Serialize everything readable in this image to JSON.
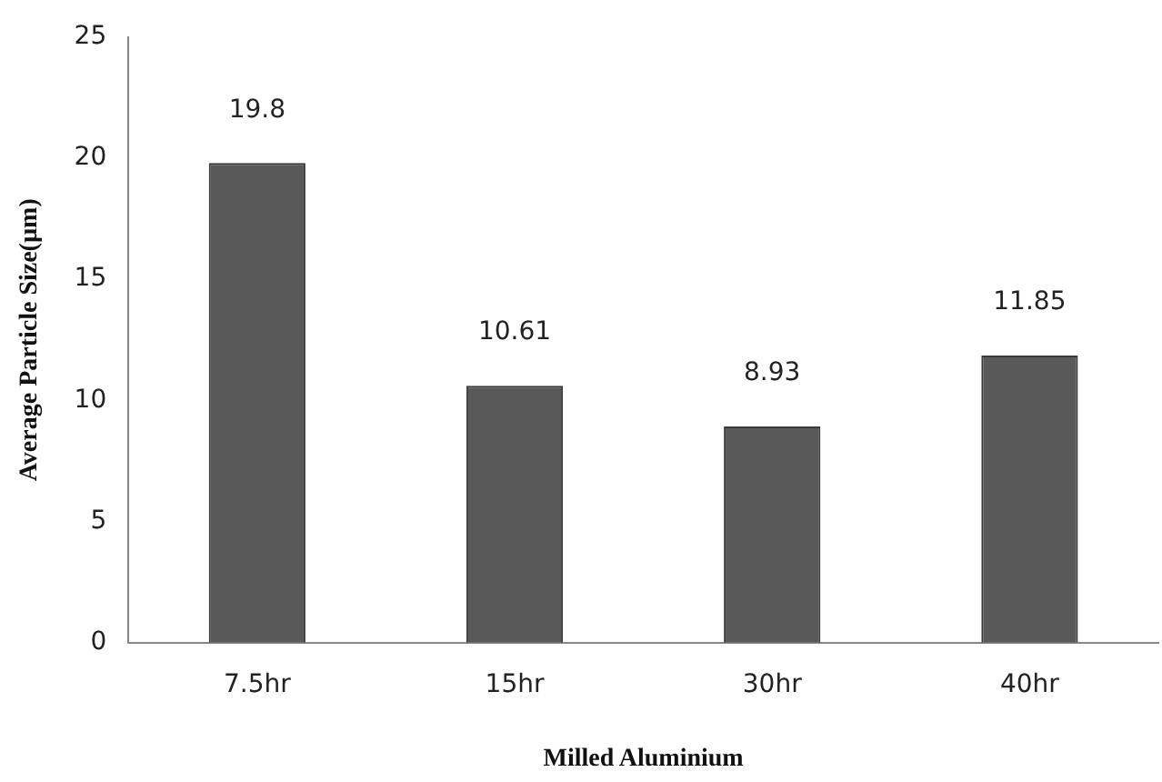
{
  "chart_data": {
    "type": "bar",
    "xlabel": "Milled Aluminium",
    "ylabel": "Average Particle Size(µm)",
    "categories": [
      "7.5hr",
      "15hr",
      "30hr",
      "40hr"
    ],
    "values": [
      19.8,
      10.61,
      8.93,
      11.85
    ],
    "color": "#595959",
    "ylim": [
      0,
      25
    ],
    "yticks": [
      0,
      5,
      10,
      15,
      20,
      25
    ],
    "grid": false,
    "legend": false,
    "data_labels": true
  }
}
